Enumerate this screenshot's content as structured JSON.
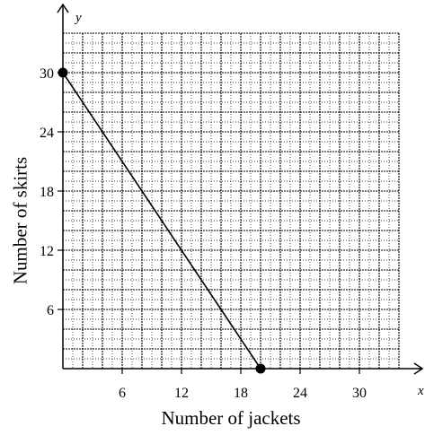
{
  "chart_data": {
    "type": "line",
    "title": "",
    "xlabel": "Number of jackets",
    "ylabel": "Number of skirts",
    "x_axis_letter": "x",
    "y_axis_letter": "y",
    "xlim": [
      0,
      34
    ],
    "ylim": [
      0,
      34
    ],
    "x_ticks": [
      6,
      12,
      18,
      24,
      30
    ],
    "y_ticks": [
      6,
      12,
      18,
      24,
      30
    ],
    "x_tick_labels": [
      "6",
      "12",
      "18",
      "24",
      "30"
    ],
    "y_tick_labels": [
      "6",
      "12",
      "18",
      "24",
      "30"
    ],
    "minor_grid_step": 1,
    "major_grid_step": 2,
    "grid": true,
    "series": [
      {
        "points": [
          {
            "x": 0,
            "y": 30
          },
          {
            "x": 20,
            "y": 0
          }
        ]
      }
    ],
    "line_color": "#000000",
    "marker_color": "#000000"
  }
}
